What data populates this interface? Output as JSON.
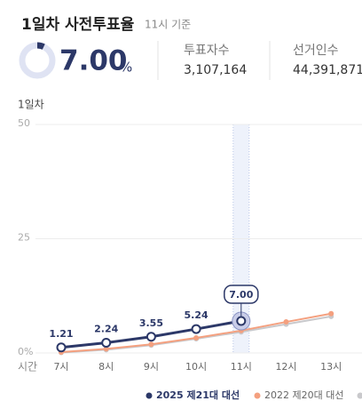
{
  "header": {
    "title": "1일차 사전투표율",
    "basis": "11시 기준",
    "rate": {
      "value": 7,
      "label": "7.00"
    },
    "rate_unit": "%",
    "voters_label": "투표자수",
    "voters": "3,107,164",
    "electorate_label": "선거인수",
    "electorate": "44,391,871"
  },
  "chart_data": {
    "type": "line",
    "y_title": "1일차",
    "x_title": "시간",
    "categories": [
      "7시",
      "8시",
      "9시",
      "10시",
      "11시",
      "12시",
      "13시"
    ],
    "ylim": [
      0,
      50
    ],
    "yticks": [
      {
        "value": 0,
        "label": "0%"
      },
      25,
      50
    ],
    "grid": true,
    "series": [
      {
        "name": "2025 제21대 대선",
        "color": "#2c3868",
        "values": [
          1.21,
          2.24,
          3.55,
          5.24,
          7.0,
          null,
          null
        ],
        "value_labels": [
          "1.21",
          "2.24",
          "3.55",
          "5.24",
          "7.00",
          null,
          null
        ]
      },
      {
        "name": "2022 제20대 대선",
        "color": "#f4a07f",
        "values": [
          0.2,
          0.9,
          1.9,
          3.3,
          4.9,
          6.8,
          8.6
        ]
      },
      {
        "name": null,
        "color": "#c9c9cc",
        "values": [
          0.1,
          0.7,
          1.7,
          3.1,
          4.6,
          6.3,
          8.0
        ]
      }
    ]
  }
}
